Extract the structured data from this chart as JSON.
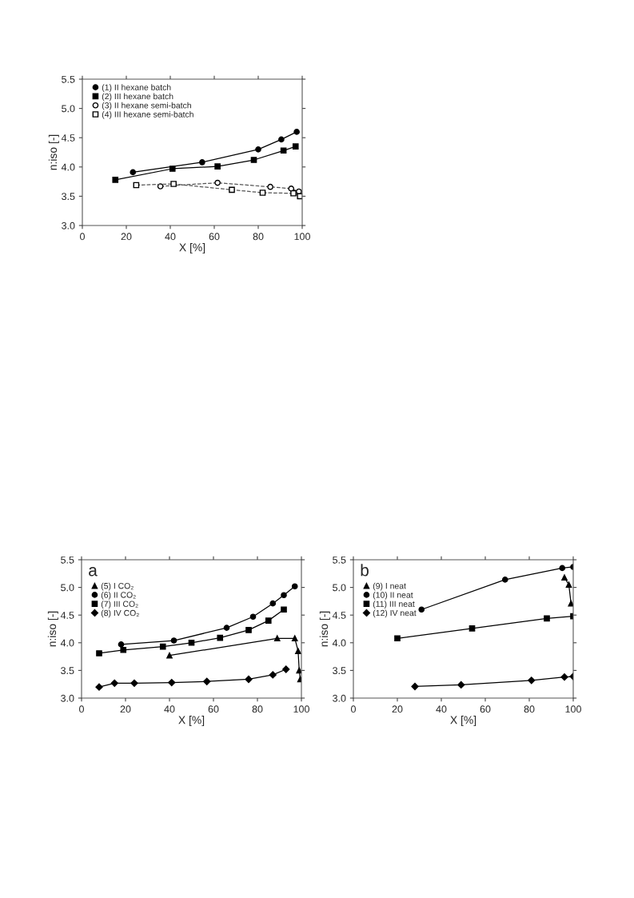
{
  "chart_data": [
    {
      "type": "line",
      "xlabel": "X [%]",
      "ylabel": "n:iso [-]",
      "xlim": [
        0,
        100
      ],
      "ylim": [
        3.0,
        5.5
      ],
      "xticks": [
        0,
        20,
        40,
        60,
        80,
        100
      ],
      "yticks": [
        {
          "value": 3,
          "label": "3.0"
        },
        3.5,
        {
          "value": 4,
          "label": "4.0"
        },
        4.5,
        {
          "value": 5,
          "label": "5.0"
        },
        5.5
      ],
      "legend": "top left",
      "grid": false,
      "series": [
        {
          "name": "(1) II hexane batch",
          "color": "#000000",
          "marker": "circle",
          "line_style": "solid",
          "x": [
            23,
            54.5,
            80,
            90.5,
            97.5
          ],
          "values": [
            3.91,
            4.08,
            4.3,
            4.47,
            4.6
          ]
        },
        {
          "name": "(2) III hexane batch",
          "color": "#000000",
          "marker": "square",
          "line_style": "solid",
          "x": [
            15,
            41,
            61.5,
            78,
            91.5,
            97
          ],
          "values": [
            3.78,
            3.97,
            4.01,
            4.12,
            4.28,
            4.35
          ]
        },
        {
          "name": "(3) II hexane semi-batch",
          "color": "#555555",
          "marker": "circle",
          "line_style": "dashed",
          "x": [
            35.5,
            61.5,
            85.5,
            95,
            98.5
          ],
          "values": [
            3.67,
            3.73,
            3.66,
            3.63,
            3.58
          ]
        },
        {
          "name": "(4) III hexane semi-batch",
          "color": "#555555",
          "marker": "square",
          "line_style": "dashed",
          "x": [
            24.5,
            41.5,
            68,
            82,
            96,
            99
          ],
          "values": [
            3.69,
            3.71,
            3.61,
            3.56,
            3.55,
            3.5
          ]
        }
      ]
    },
    {
      "type": "line",
      "xlabel": "X [%]",
      "ylabel": "n:iso [-]",
      "xlim": [
        0,
        100
      ],
      "ylim": [
        3.0,
        5.5
      ],
      "xticks": [
        0,
        20,
        40,
        60,
        80,
        100
      ],
      "yticks": [
        {
          "value": 3,
          "label": "3.0"
        },
        3.5,
        {
          "value": 4,
          "label": "4.0"
        },
        4.5,
        {
          "value": 5,
          "label": "5.0"
        },
        5.5
      ],
      "legend": "top left",
      "grid": false,
      "annotations": [
        "a"
      ],
      "series": [
        {
          "name": "(5) I CO₂",
          "color": "#000000",
          "marker": "triangle",
          "line_style": "solid",
          "x": [
            40,
            89,
            97,
            98.5,
            99,
            99.5
          ],
          "values": [
            3.77,
            4.08,
            4.08,
            3.85,
            3.5,
            3.34
          ]
        },
        {
          "name": "(6) II CO₂",
          "color": "#000000",
          "marker": "circle",
          "line_style": "solid",
          "x": [
            18,
            42,
            66,
            78,
            87,
            92,
            97
          ],
          "values": [
            3.97,
            4.04,
            4.27,
            4.47,
            4.71,
            4.86,
            5.02
          ]
        },
        {
          "name": "(7) III CO₂",
          "color": "#000000",
          "marker": "square",
          "line_style": "solid",
          "x": [
            8,
            19,
            37,
            50,
            63,
            76,
            85,
            92
          ],
          "values": [
            3.81,
            3.87,
            3.93,
            4.0,
            4.09,
            4.23,
            4.4,
            4.6
          ]
        },
        {
          "name": "(8) IV CO₂",
          "color": "#000000",
          "marker": "diamond",
          "line_style": "solid",
          "x": [
            8,
            15,
            24,
            41,
            57,
            76,
            87,
            93
          ],
          "values": [
            3.2,
            3.27,
            3.27,
            3.28,
            3.3,
            3.34,
            3.42,
            3.52
          ]
        }
      ]
    },
    {
      "type": "line",
      "xlabel": "X [%]",
      "ylabel": "n:iso [-]",
      "xlim": [
        0,
        100
      ],
      "ylim": [
        3.0,
        5.5
      ],
      "xticks": [
        0,
        20,
        40,
        60,
        80,
        100
      ],
      "yticks": [
        {
          "value": 3,
          "label": "3.0"
        },
        3.5,
        {
          "value": 4,
          "label": "4.0"
        },
        4.5,
        {
          "value": 5,
          "label": "5.0"
        },
        5.5
      ],
      "legend": "top left",
      "grid": false,
      "annotations": [
        "b"
      ],
      "series": [
        {
          "name": "(9) I neat",
          "color": "#000000",
          "marker": "triangle",
          "line_style": "solid",
          "x": [
            96,
            98,
            99
          ],
          "values": [
            5.18,
            5.05,
            4.71
          ]
        },
        {
          "name": "(10) II neat",
          "color": "#000000",
          "marker": "circle",
          "line_style": "solid",
          "x": [
            31,
            69,
            95,
            100
          ],
          "values": [
            4.6,
            5.14,
            5.35,
            5.37
          ]
        },
        {
          "name": "(11) III neat",
          "color": "#000000",
          "marker": "square",
          "line_style": "solid",
          "x": [
            20,
            54,
            88,
            100
          ],
          "values": [
            4.08,
            4.26,
            4.44,
            4.48
          ]
        },
        {
          "name": "(12) IV neat",
          "color": "#000000",
          "marker": "diamond",
          "line_style": "solid",
          "x": [
            28,
            49,
            81,
            96,
            100
          ],
          "values": [
            3.21,
            3.24,
            3.32,
            3.38,
            3.39
          ]
        }
      ]
    }
  ]
}
